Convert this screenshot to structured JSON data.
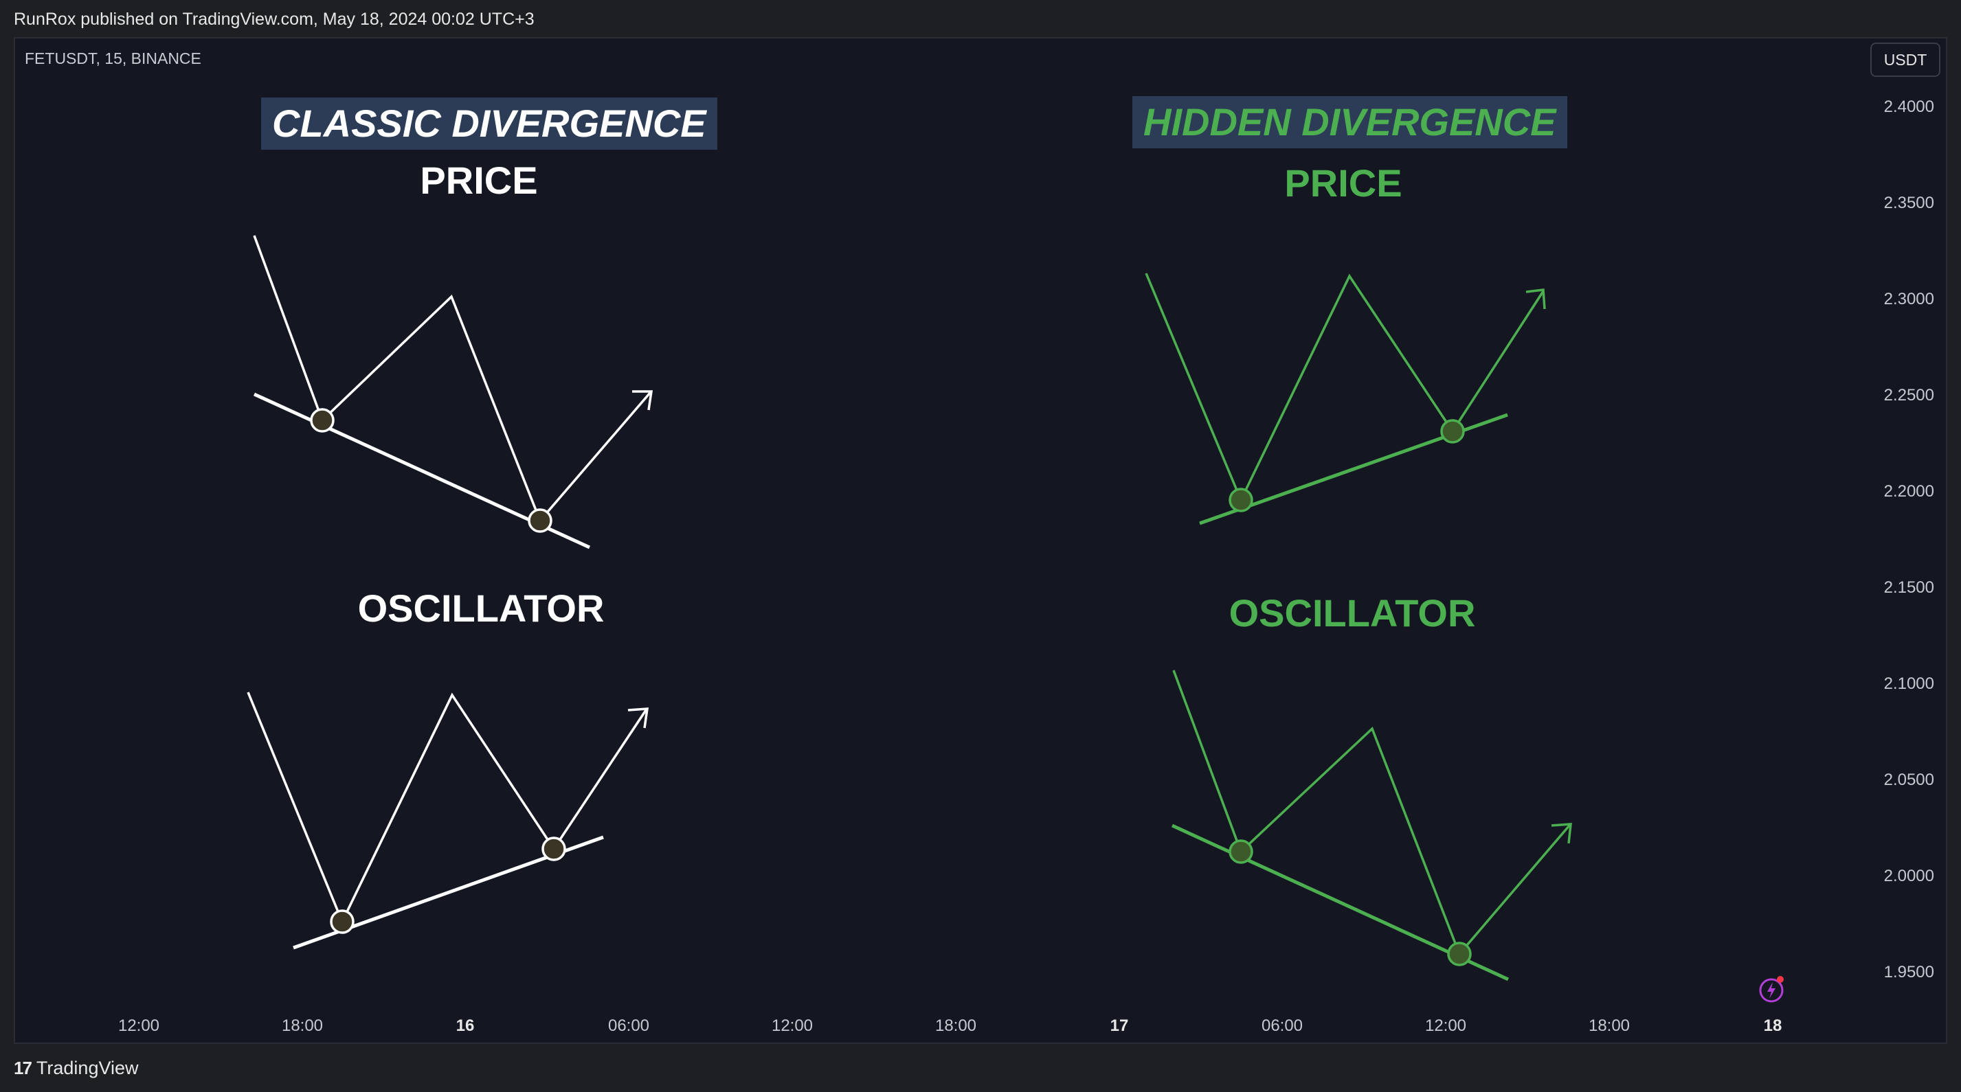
{
  "header": {
    "published_text": "RunRox published on TradingView.com, May 18, 2024 00:02 UTC+3"
  },
  "chart": {
    "symbol": "FETUSDT, 15, BINANCE",
    "currency": "USDT",
    "price_axis": [
      "2.4000",
      "2.3500",
      "2.3000",
      "2.2500",
      "2.2000",
      "2.1500",
      "2.1000",
      "2.0500",
      "2.0000",
      "1.9500"
    ],
    "time_axis": [
      {
        "label": "12:00",
        "bold": false
      },
      {
        "label": "18:00",
        "bold": false
      },
      {
        "label": "16",
        "bold": true
      },
      {
        "label": "06:00",
        "bold": false
      },
      {
        "label": "12:00",
        "bold": false
      },
      {
        "label": "18:00",
        "bold": false
      },
      {
        "label": "17",
        "bold": true
      },
      {
        "label": "06:00",
        "bold": false
      },
      {
        "label": "12:00",
        "bold": false
      },
      {
        "label": "18:00",
        "bold": false
      },
      {
        "label": "18",
        "bold": true
      }
    ]
  },
  "annotations": {
    "classic": {
      "title": "CLASSIC DIVERGENCE",
      "price_heading": "PRICE",
      "oscillator_heading": "OSCILLATOR",
      "color": "#ffffff"
    },
    "hidden": {
      "title": "HIDDEN DIVERGENCE",
      "price_heading": "PRICE",
      "oscillator_heading": "OSCILLATOR",
      "color": "#4caf50"
    }
  },
  "icons": {
    "alert": "lightning-icon",
    "logo": "tradingview-logo-icon"
  },
  "footer": {
    "brand": "TradingView"
  }
}
